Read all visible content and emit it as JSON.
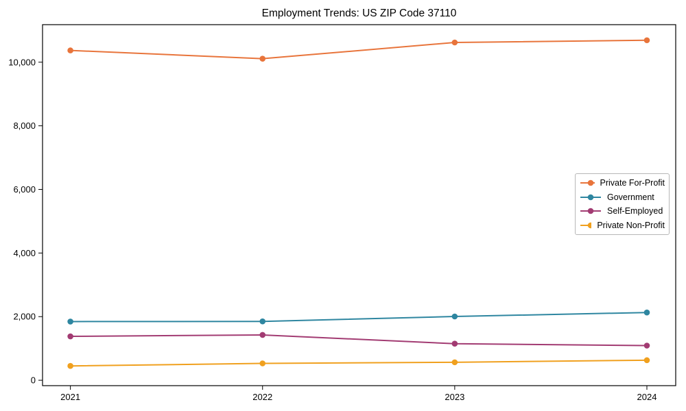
{
  "chart_data": {
    "type": "line",
    "title": "Employment Trends: US ZIP Code 37110",
    "x": [
      2021,
      2022,
      2023,
      2024
    ],
    "xticks": [
      2021,
      2022,
      2023,
      2024
    ],
    "xtick_labels": [
      "2021",
      "2022",
      "2023",
      "2024"
    ],
    "yticks": [
      0,
      2000,
      4000,
      6000,
      8000,
      10000
    ],
    "ytick_labels": [
      "0",
      "2,000",
      "4,000",
      "6,000",
      "8,000",
      "10,000"
    ],
    "xlim": [
      2020.855,
      2024.15
    ],
    "ylim": [
      -170,
      11180
    ],
    "grid": false,
    "legend_position": "center right",
    "series": [
      {
        "name": "Private For-Profit",
        "color": "#e8743b",
        "values": [
          10370,
          10110,
          10620,
          10690
        ]
      },
      {
        "name": "Government",
        "color": "#2e86a0",
        "values": [
          1845,
          1850,
          2005,
          2130
        ]
      },
      {
        "name": "Self-Employed",
        "color": "#a23b72",
        "values": [
          1380,
          1425,
          1150,
          1090
        ]
      },
      {
        "name": "Private Non-Profit",
        "color": "#f0a01e",
        "values": [
          450,
          530,
          565,
          630
        ]
      }
    ]
  }
}
